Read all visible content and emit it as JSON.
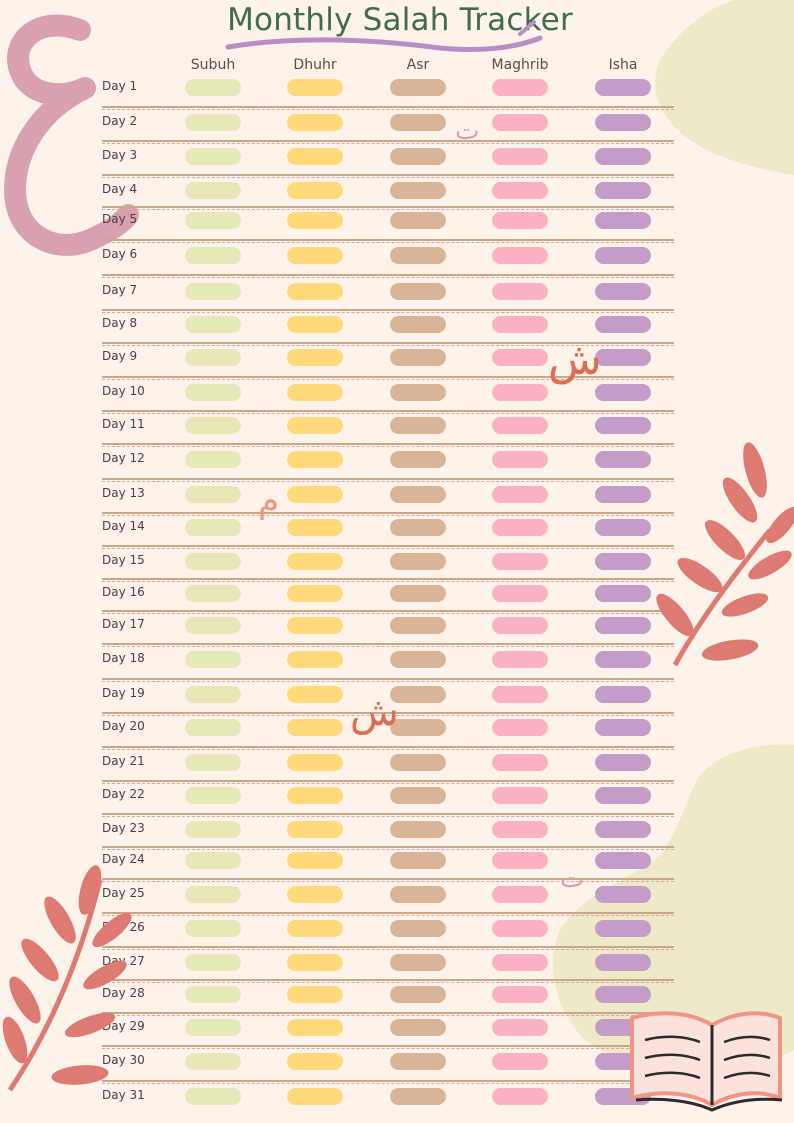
{
  "title": "Monthly Salah Tracker",
  "prayers": [
    {
      "name": "Subuh",
      "color": "#e6e8b6"
    },
    {
      "name": "Dhuhr",
      "color": "#ffd97a"
    },
    {
      "name": "Asr",
      "color": "#d9b497"
    },
    {
      "name": "Maghrib",
      "color": "#fbb1bf"
    },
    {
      "name": "Isha",
      "color": "#c39cc7"
    }
  ],
  "days": [
    "Day 1",
    "Day 2",
    "Day 3",
    "Day 4",
    "Day 5",
    "Day 6",
    "Day 7",
    "Day 8",
    "Day 9",
    "Day 10",
    "Day 11",
    "Day 12",
    "Day 13",
    "Day 14",
    "Day 15",
    "Day 16",
    "Day 17",
    "Day 18",
    "Day 19",
    "Day 20",
    "Day 21",
    "Day 22",
    "Day 23",
    "Day 24",
    "Day 25",
    "Day 26",
    "Day 27",
    "Day 28",
    "Day 29",
    "Day 30",
    "Day 31"
  ],
  "decorations": {
    "arabic_letters": [
      "ع",
      "ت",
      "ش",
      "م",
      "ش",
      "ت"
    ],
    "icons": [
      "leaf-branch-icon",
      "open-book-icon"
    ]
  },
  "colors": {
    "background": "#fdf3ea",
    "title": "#3f6b4f",
    "blob": "#eeeac8",
    "leaf": "#dd7a72",
    "separator_tan": "#c9a889",
    "separator_dotted": "#d8a4a0"
  }
}
